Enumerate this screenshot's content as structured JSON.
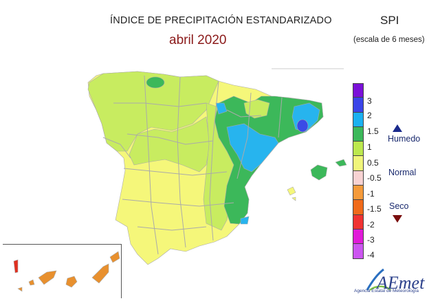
{
  "header": {
    "title": "ÍNDICE DE PRECIPITACIÓN ESTANDARIZADO",
    "subtitle": "abril 2020",
    "index_label": "SPI",
    "scale_label": "(escala de 6 meses)"
  },
  "legend": {
    "colors": [
      "#7a10d8",
      "#3a44e8",
      "#1ab0f0",
      "#3cb85a",
      "#bce84e",
      "#f0f57a",
      "#f7d2d2",
      "#f59a3a",
      "#f06a1a",
      "#f03232",
      "#e01ad8",
      "#cc55f0"
    ],
    "ticks": [
      "3",
      "2",
      "1.5",
      "1",
      "0.5",
      "-0.5",
      "-1",
      "-1.5",
      "-2",
      "-3",
      "-4"
    ],
    "humid_label": "Humedo",
    "normal_label": "Normal",
    "dry_label": "Seco"
  },
  "map_colors": {
    "normal": "#f5f77a",
    "normal_plus": "#c8ec60",
    "wet": "#3cb85a",
    "very_wet": "#27b4ee",
    "extremely_wet": "#3a4ae6",
    "dry": "#e8902e",
    "very_dry": "#e03020",
    "province_border": "#aaaaaa"
  },
  "logo": {
    "name": "AEmet",
    "caption": "Agencia Estatal de Meteorología"
  }
}
